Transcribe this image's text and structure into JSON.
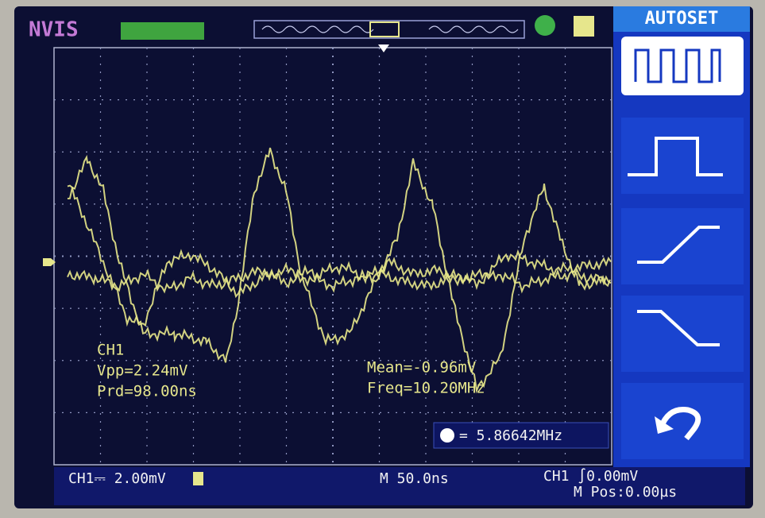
{
  "header": {
    "brand": "NVIS",
    "menu_title": "AUTOSET"
  },
  "measurements": {
    "channel": "CH1",
    "vpp": "Vpp=2.24mV",
    "prd": "Prd=98.00ns",
    "mean": "Mean=-0.96mV",
    "freq": "Freq=10.20MHz",
    "counter": "= 5.86642MHz"
  },
  "status": {
    "ch1_scale": "CH1⎓ 2.00mV",
    "timebase": "M 50.0ns",
    "trigger": "CH1 ∫0.00mV",
    "position": "M Pos:0.00µs"
  }
}
